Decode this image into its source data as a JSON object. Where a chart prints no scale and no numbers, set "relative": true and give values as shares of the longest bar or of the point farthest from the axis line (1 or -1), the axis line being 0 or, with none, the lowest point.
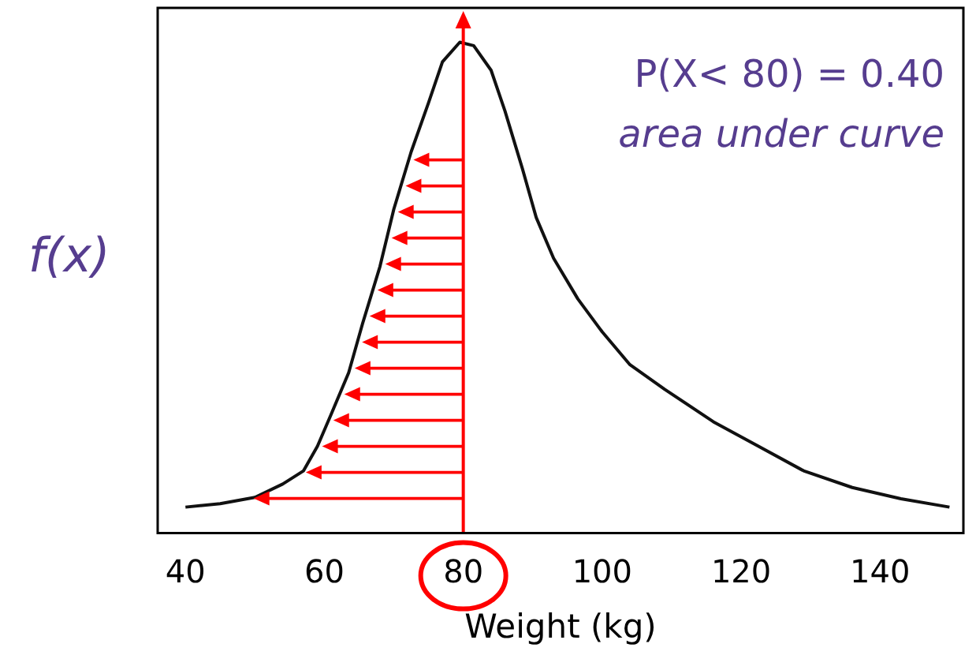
{
  "chart_data": {
    "type": "line",
    "relative": true,
    "xlabel": "Weight (kg)",
    "ylabel": "f(x)",
    "annotations": [
      "P(X< 80) = 0.40",
      "area under curve"
    ],
    "x": [
      40,
      45,
      50,
      54,
      57,
      59,
      61,
      63.5,
      65.5,
      68,
      70,
      72.5,
      75,
      77,
      79.5,
      81.5,
      84,
      86,
      88.5,
      90.5,
      93,
      96.5,
      100,
      104,
      109,
      116,
      122.5,
      129,
      136,
      143,
      150
    ],
    "series": [
      {
        "color": "#111111",
        "values": [
          0.053,
          0.06,
          0.073,
          0.1,
          0.127,
          0.177,
          0.243,
          0.327,
          0.427,
          0.543,
          0.66,
          0.777,
          0.877,
          0.96,
          1,
          0.993,
          0.943,
          0.86,
          0.743,
          0.643,
          0.56,
          0.477,
          0.41,
          0.343,
          0.293,
          0.227,
          0.177,
          0.127,
          0.093,
          0.07,
          0.053
        ]
      }
    ],
    "xlim": [
      36,
      152
    ],
    "xticks": [
      40,
      60,
      80,
      100,
      120,
      140
    ],
    "ref_lines": [
      {
        "axis": "x",
        "value": 80,
        "color": "#ff0000"
      }
    ],
    "tick_labels": "x",
    "grid": false,
    "legend": false,
    "marker": "none",
    "line_style": "solid"
  }
}
